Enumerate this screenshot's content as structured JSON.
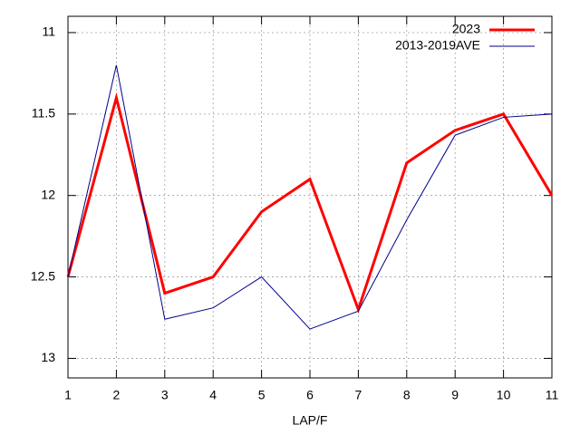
{
  "chart_data": {
    "type": "line",
    "x_label": "LAP/F",
    "x": [
      1,
      2,
      3,
      4,
      5,
      6,
      7,
      8,
      9,
      10,
      11
    ],
    "series": [
      {
        "name": "2023",
        "color": "#ff0000",
        "values": [
          12.5,
          11.4,
          12.6,
          12.5,
          12.1,
          11.9,
          12.7,
          11.8,
          11.6,
          11.5,
          12.0
        ]
      },
      {
        "name": "2013-2019AVE",
        "color": "#00008b",
        "values": [
          12.5,
          11.2,
          12.76,
          12.69,
          12.5,
          12.82,
          12.71,
          12.15,
          11.63,
          11.52,
          11.5
        ]
      }
    ],
    "xlim": [
      1,
      11
    ],
    "xticks": [
      1,
      2,
      3,
      4,
      5,
      6,
      7,
      8,
      9,
      10,
      11
    ],
    "ylim": [
      13.12,
      10.9
    ],
    "yticks": [
      11,
      11.5,
      12,
      12.5,
      13
    ],
    "grid": true,
    "legend": "top-right"
  }
}
